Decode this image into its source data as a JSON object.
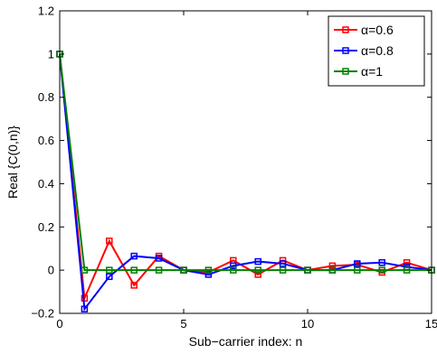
{
  "chart_data": {
    "type": "line",
    "title": "",
    "xlabel": "Sub−carrier index: n",
    "ylabel": "Real {C(0,n)}",
    "xlim": [
      0,
      15
    ],
    "ylim": [
      -0.2,
      1.2
    ],
    "xticks": [
      0,
      5,
      10,
      15
    ],
    "yticks": [
      -0.2,
      0,
      0.2,
      0.4,
      0.6,
      0.8,
      1,
      1.2
    ],
    "xtick_labels": [
      "0",
      "5",
      "10",
      "15"
    ],
    "ytick_labels": [
      "−0.2",
      "0",
      "0.2",
      "0.4",
      "0.6",
      "0.8",
      "1",
      "1.2"
    ],
    "grid": false,
    "legend_position": "top-right",
    "marker": "square",
    "x": [
      0,
      1,
      2,
      3,
      4,
      5,
      6,
      7,
      8,
      9,
      10,
      11,
      12,
      13,
      14,
      15
    ],
    "series": [
      {
        "name": "α=0.6",
        "color": "#ff0000",
        "values": [
          1.0,
          -0.13,
          0.135,
          -0.07,
          0.065,
          0.0,
          -0.01,
          0.045,
          -0.02,
          0.045,
          0.0,
          0.02,
          0.025,
          -0.01,
          0.035,
          0.0
        ]
      },
      {
        "name": "α=0.8",
        "color": "#0000ff",
        "values": [
          1.0,
          -0.18,
          -0.03,
          0.065,
          0.055,
          0.0,
          -0.02,
          0.02,
          0.04,
          0.03,
          0.0,
          0.0,
          0.03,
          0.035,
          0.015,
          0.0
        ]
      },
      {
        "name": "α=1",
        "color": "#008000",
        "values": [
          1.0,
          0.0,
          0.0,
          0.0,
          0.0,
          0.0,
          0.0,
          0.0,
          0.0,
          0.0,
          0.0,
          0.0,
          0.0,
          0.0,
          0.0,
          0.0
        ]
      }
    ]
  }
}
